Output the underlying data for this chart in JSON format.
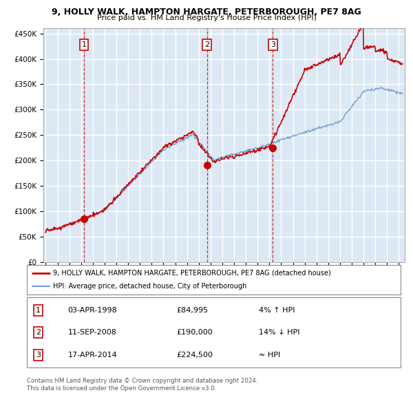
{
  "title1": "9, HOLLY WALK, HAMPTON HARGATE, PETERBOROUGH, PE7 8AG",
  "title2": "Price paid vs. HM Land Registry's House Price Index (HPI)",
  "bg_color": "#dce9f5",
  "grid_color": "#ffffff",
  "sale_color": "#cc0000",
  "hpi_color": "#6699cc",
  "sales": [
    {
      "date": 1998.25,
      "price": 84995,
      "label": "1"
    },
    {
      "date": 2008.7,
      "price": 190000,
      "label": "2"
    },
    {
      "date": 2014.29,
      "price": 224500,
      "label": "3"
    }
  ],
  "sale_vlines": [
    1998.25,
    2008.7,
    2014.29
  ],
  "legend_entries": [
    "9, HOLLY WALK, HAMPTON HARGATE, PETERBOROUGH, PE7 8AG (detached house)",
    "HPI: Average price, detached house, City of Peterborough"
  ],
  "table_entries": [
    {
      "num": "1",
      "date": "03-APR-1998",
      "price": "£84,995",
      "hpi": "4% ↑ HPI"
    },
    {
      "num": "2",
      "date": "11-SEP-2008",
      "price": "£190,000",
      "hpi": "14% ↓ HPI"
    },
    {
      "num": "3",
      "date": "17-APR-2014",
      "price": "£224,500",
      "hpi": "≈ HPI"
    }
  ],
  "footnote1": "Contains HM Land Registry data © Crown copyright and database right 2024.",
  "footnote2": "This data is licensed under the Open Government Licence v3.0.",
  "ylim": [
    0,
    460000
  ],
  "yticks": [
    0,
    50000,
    100000,
    150000,
    200000,
    250000,
    300000,
    350000,
    400000,
    450000
  ],
  "xmin": 1994.8,
  "xmax": 2025.5
}
